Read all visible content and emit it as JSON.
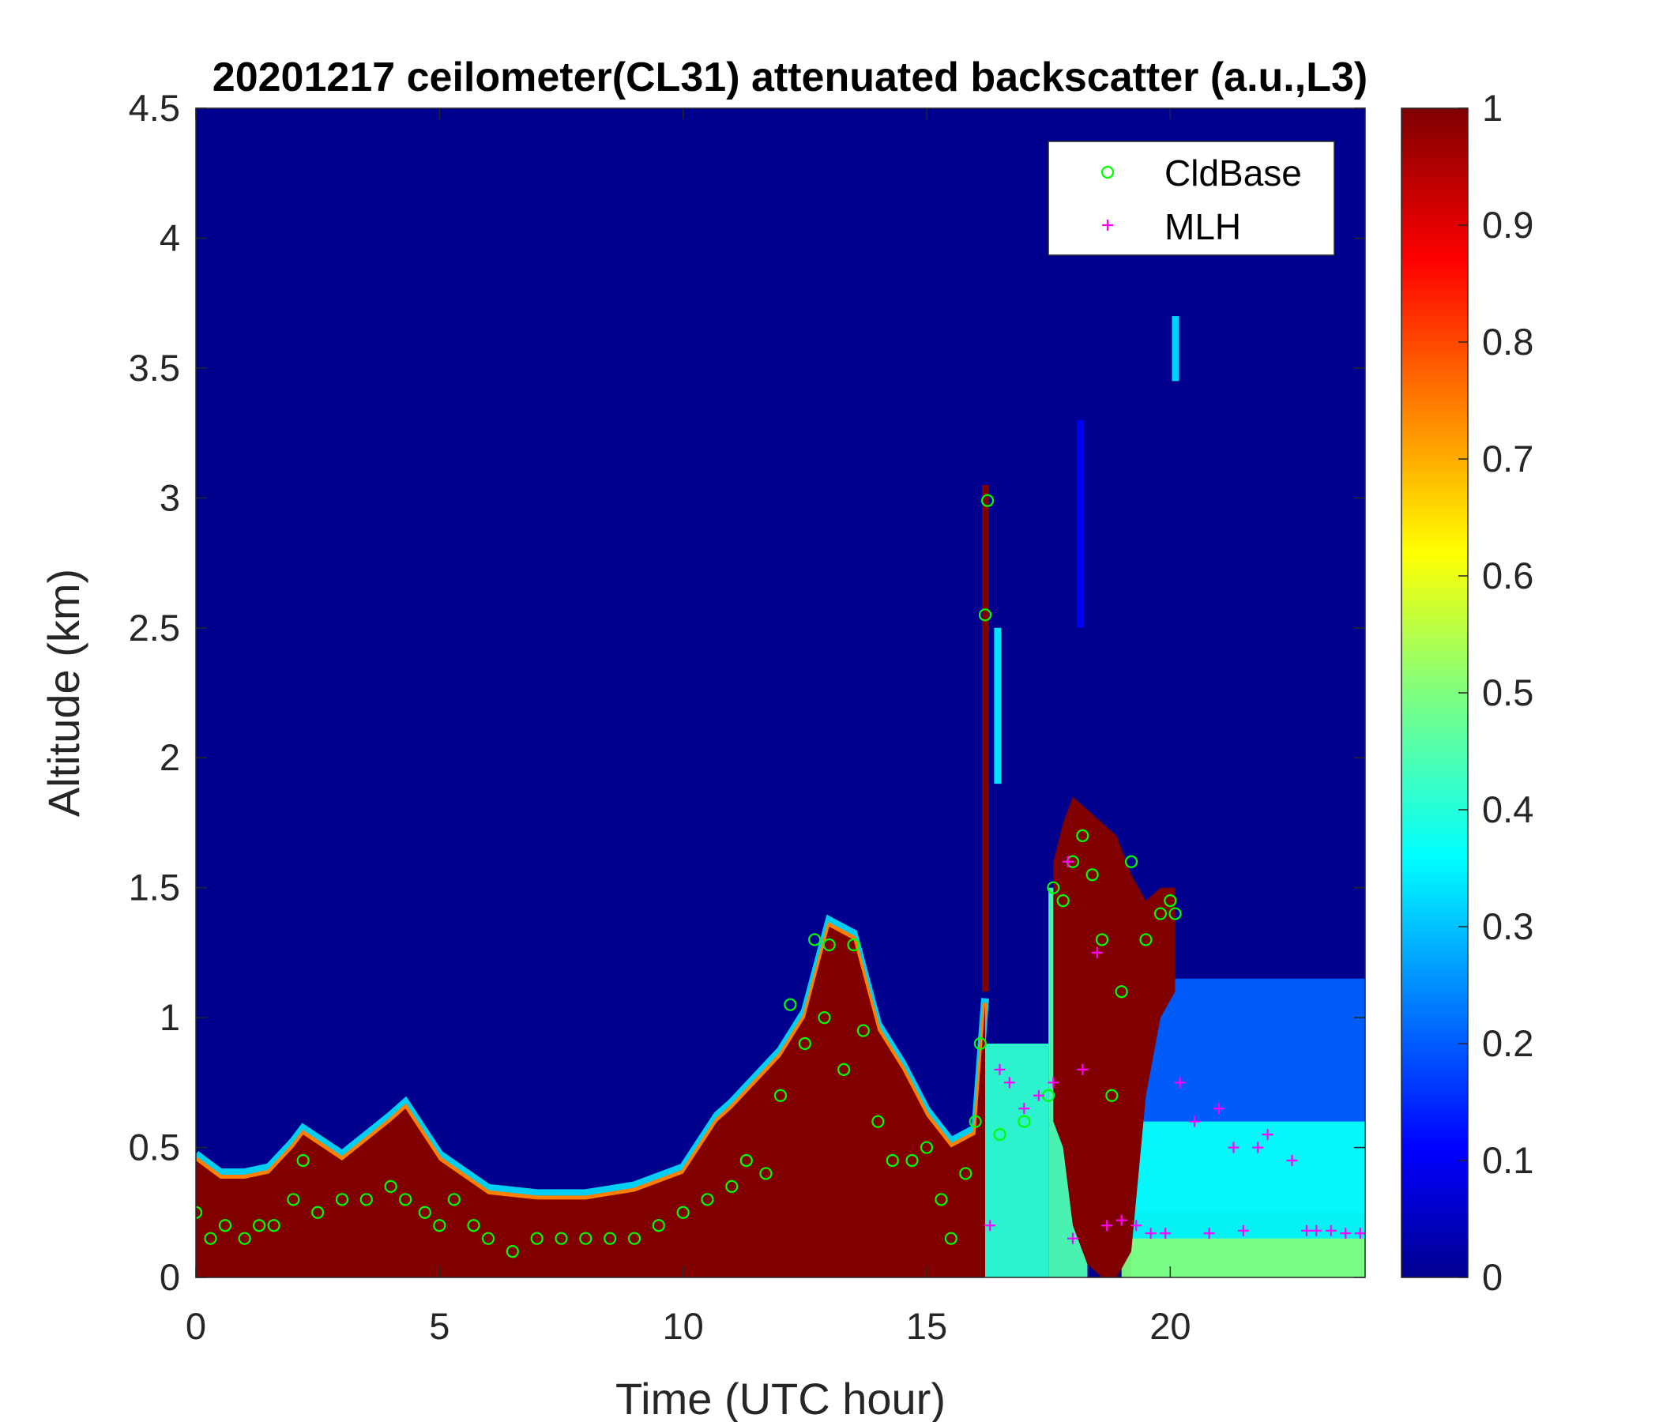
{
  "chart_data": {
    "type": "heatmap",
    "title": "20201217 ceilometer(CL31) attenuated backscatter (a.u.,L3)",
    "xlabel": "Time (UTC hour)",
    "ylabel": "Altitude (km)",
    "xlim": [
      0,
      24
    ],
    "ylim": [
      0,
      4.5
    ],
    "xticks": [
      0,
      5,
      10,
      15,
      20
    ],
    "xtick_labels": [
      "0",
      "5",
      "10",
      "15",
      "20"
    ],
    "yticks": [
      0,
      0.5,
      1,
      1.5,
      2,
      2.5,
      3,
      3.5,
      4,
      4.5
    ],
    "ytick_labels": [
      "0",
      "0.5",
      "1",
      "1.5",
      "2",
      "2.5",
      "3",
      "3.5",
      "4",
      "4.5"
    ],
    "colorbar": {
      "colormap": "jet",
      "range": [
        0,
        1
      ],
      "ticks": [
        0,
        0.1,
        0.2,
        0.3,
        0.4,
        0.5,
        0.6,
        0.7,
        0.8,
        0.9,
        1
      ],
      "tick_labels": [
        "0",
        "0.1",
        "0.2",
        "0.3",
        "0.4",
        "0.5",
        "0.6",
        "0.7",
        "0.8",
        "0.9",
        "1"
      ]
    },
    "background_value": 0.0,
    "legend": {
      "location": "top-right",
      "entries": [
        {
          "label": "CldBase",
          "marker": "circle",
          "color": "#00ff00"
        },
        {
          "label": "MLH",
          "marker": "plus",
          "color": "#ff00ff"
        }
      ]
    },
    "backscatter_layer_top": {
      "time_h": [
        0,
        0.5,
        1,
        1.5,
        2,
        2.2,
        3,
        4,
        4.3,
        5,
        6,
        7,
        8,
        9,
        10,
        10.7,
        11,
        11.5,
        12,
        12.5,
        13,
        13.5,
        14,
        14.5,
        15,
        15.5,
        16,
        16.2
      ],
      "altitude_km": [
        0.45,
        0.38,
        0.38,
        0.4,
        0.5,
        0.55,
        0.45,
        0.6,
        0.65,
        0.45,
        0.32,
        0.3,
        0.3,
        0.33,
        0.4,
        0.6,
        0.65,
        0.75,
        0.85,
        1.0,
        1.35,
        1.3,
        0.95,
        0.8,
        0.62,
        0.5,
        0.55,
        1.05
      ]
    },
    "aerosol_regions": [
      {
        "t0": 16.2,
        "t1": 17.5,
        "z0": 0,
        "z1": 0.9,
        "value": 0.42
      },
      {
        "t0": 17.5,
        "t1": 18.3,
        "z0": 0,
        "z1": 1.5,
        "value": 0.45
      },
      {
        "t0": 19.2,
        "t1": 24,
        "z0": 0.25,
        "z1": 1.15,
        "value": 0.22
      },
      {
        "t0": 19.2,
        "t1": 24,
        "z0": 0,
        "z1": 0.6,
        "value": 0.38
      },
      {
        "t0": 19.0,
        "t1": 24,
        "z0": 0,
        "z1": 0.15,
        "value": 0.5
      }
    ],
    "cloud_plume": {
      "time_h": [
        17.6,
        17.8,
        18.0,
        18.3,
        18.6,
        18.9,
        19.2,
        19.5,
        19.8,
        20.1
      ],
      "base_km": [
        0.6,
        0.5,
        0.2,
        0.05,
        0,
        0,
        0.1,
        0.7,
        1.0,
        1.1
      ],
      "top_km": [
        1.6,
        1.75,
        1.85,
        1.8,
        1.75,
        1.7,
        1.55,
        1.45,
        1.5,
        1.5
      ]
    },
    "thin_columns": [
      {
        "t": 16.2,
        "z0": 1.1,
        "z1": 3.05,
        "value": 1.0
      },
      {
        "t": 16.45,
        "z0": 1.9,
        "z1": 2.5,
        "value": 0.35
      },
      {
        "t": 18.15,
        "z0": 2.5,
        "z1": 3.3,
        "value": 0.12
      },
      {
        "t": 20.1,
        "z0": 3.45,
        "z1": 3.7,
        "value": 0.33
      }
    ],
    "series": [
      {
        "name": "CldBase",
        "marker": "circle",
        "color": "#00ff00",
        "x": [
          0,
          0.3,
          0.6,
          1,
          1.3,
          1.6,
          2,
          2.2,
          2.5,
          3,
          3.5,
          4,
          4.3,
          4.7,
          5,
          5.3,
          5.7,
          6,
          6.5,
          7,
          7.5,
          8,
          8.5,
          9,
          9.5,
          10,
          10.5,
          11,
          11.3,
          11.7,
          12,
          12.2,
          12.5,
          12.7,
          12.9,
          13,
          13.3,
          13.5,
          13.7,
          14,
          14.3,
          14.7,
          15,
          15.3,
          15.5,
          15.8,
          16,
          16.1,
          16.2,
          16.25,
          16.5,
          17,
          17.5,
          17.6,
          17.8,
          18,
          18.2,
          18.4,
          18.6,
          18.8,
          19,
          19.2,
          19.5,
          19.8,
          20,
          20.1
        ],
        "y": [
          0.25,
          0.15,
          0.2,
          0.15,
          0.2,
          0.2,
          0.3,
          0.45,
          0.25,
          0.3,
          0.3,
          0.35,
          0.3,
          0.25,
          0.2,
          0.3,
          0.2,
          0.15,
          0.1,
          0.15,
          0.15,
          0.15,
          0.15,
          0.15,
          0.2,
          0.25,
          0.3,
          0.35,
          0.45,
          0.4,
          0.7,
          1.05,
          0.9,
          1.3,
          1.0,
          1.28,
          0.8,
          1.28,
          0.95,
          0.6,
          0.45,
          0.45,
          0.5,
          0.3,
          0.15,
          0.4,
          0.6,
          0.9,
          2.55,
          2.99,
          0.55,
          0.6,
          0.7,
          1.5,
          1.45,
          1.6,
          1.7,
          1.55,
          1.3,
          0.7,
          1.1,
          1.6,
          1.3,
          1.4,
          1.45,
          1.4
        ]
      },
      {
        "name": "MLH",
        "marker": "plus",
        "color": "#ff00ff",
        "x": [
          16.3,
          16.5,
          16.7,
          17.0,
          17.3,
          17.6,
          17.9,
          18.0,
          18.2,
          18.5,
          18.7,
          19.0,
          19.3,
          19.6,
          19.9,
          20.2,
          20.5,
          20.8,
          21.0,
          21.3,
          21.5,
          21.8,
          22.0,
          22.5,
          22.8,
          23.0,
          23.3,
          23.6,
          23.9
        ],
        "y": [
          0.2,
          0.8,
          0.75,
          0.65,
          0.7,
          0.75,
          1.6,
          0.15,
          0.8,
          1.25,
          0.2,
          0.22,
          0.2,
          0.17,
          0.17,
          0.75,
          0.6,
          0.17,
          0.65,
          0.5,
          0.18,
          0.5,
          0.55,
          0.45,
          0.18,
          0.18,
          0.18,
          0.17,
          0.17
        ]
      }
    ]
  }
}
